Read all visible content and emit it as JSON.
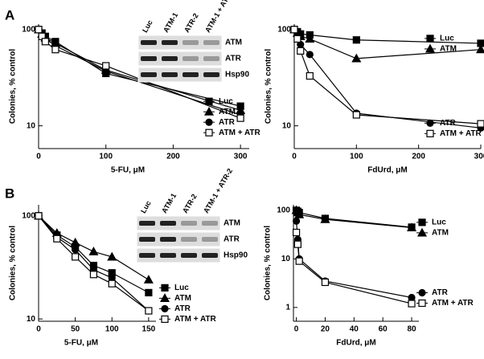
{
  "panel_labels": [
    "A",
    "B"
  ],
  "chart_data": [
    {
      "type": "line",
      "yscale": "log",
      "xlabel": "5-FU, μM",
      "ylabel": "Colonies, % control",
      "x": [
        0,
        5,
        10,
        25,
        100,
        300
      ],
      "xlim": [
        0,
        313
      ],
      "xticks": [
        0,
        100,
        200,
        300
      ],
      "ylim": [
        5.8,
        114
      ],
      "yticks": [
        10,
        100
      ],
      "series": [
        {
          "name": "Luc",
          "marker": "square",
          "color": "#000",
          "values": [
            100,
            92,
            85,
            75,
            35,
            16
          ]
        },
        {
          "name": "ATM",
          "marker": "triangle",
          "color": "#000",
          "values": [
            100,
            90,
            82,
            72,
            38,
            14.5
          ]
        },
        {
          "name": "ATR",
          "marker": "circle",
          "color": "#000",
          "values": [
            100,
            88,
            80,
            68,
            37,
            13
          ]
        },
        {
          "name": "ATM + ATR",
          "marker": "open-square",
          "color": "#000",
          "values": [
            100,
            85,
            75,
            62,
            42,
            12
          ]
        }
      ],
      "inset": {
        "lanes": [
          "Luc",
          "ATM-1",
          "ATR-2",
          "ATM-1 + ATR-2"
        ],
        "rows": [
          "ATM",
          "ATR",
          "Hsp90"
        ]
      }
    },
    {
      "type": "line",
      "yscale": "log",
      "xlabel": "FdUrd, μM",
      "ylabel": "Colonies, % control",
      "x": [
        0,
        5,
        10,
        25,
        100,
        300
      ],
      "xlim": [
        0,
        300
      ],
      "xticks": [
        0,
        100,
        200,
        300
      ],
      "ylim": [
        5.8,
        114
      ],
      "yticks": [
        10,
        100
      ],
      "series": [
        {
          "name": "Luc",
          "marker": "square",
          "color": "#000",
          "values": [
            100,
            95,
            90,
            88,
            78,
            72
          ]
        },
        {
          "name": "ATM",
          "marker": "triangle",
          "color": "#000",
          "values": [
            100,
            92,
            85,
            80,
            50,
            62
          ]
        },
        {
          "name": "ATR",
          "marker": "circle",
          "color": "#000",
          "values": [
            100,
            85,
            70,
            55,
            13.5,
            9.5
          ]
        },
        {
          "name": "ATM + ATR",
          "marker": "open-square",
          "color": "#000",
          "values": [
            100,
            80,
            60,
            33,
            13,
            10.5
          ]
        }
      ]
    },
    {
      "type": "line",
      "yscale": "log",
      "xlabel": "5-FU, μM",
      "ylabel": "Colonies, % control",
      "x": [
        0,
        25,
        50,
        75,
        100,
        150
      ],
      "xlim": [
        0,
        160
      ],
      "xticks": [
        0,
        50,
        100,
        150
      ],
      "ylim": [
        9.5,
        128
      ],
      "yticks": [
        10,
        100
      ],
      "series": [
        {
          "name": "Luc",
          "marker": "square",
          "color": "#000",
          "values": [
            100,
            65,
            50,
            33,
            28,
            18
          ]
        },
        {
          "name": "ATM",
          "marker": "triangle",
          "color": "#000",
          "values": [
            100,
            68,
            55,
            45,
            40,
            24
          ]
        },
        {
          "name": "ATR",
          "marker": "circle",
          "color": "#000",
          "values": [
            100,
            62,
            47,
            30,
            25,
            12
          ]
        },
        {
          "name": "ATM + ATR",
          "marker": "open-square",
          "color": "#000",
          "values": [
            100,
            60,
            40,
            27,
            22,
            12
          ]
        }
      ],
      "inset": {
        "lanes": [
          "Luc",
          "ATM-1",
          "ATR-2",
          "ATM-1 + ATR-2"
        ],
        "rows": [
          "ATM",
          "ATR",
          "Hsp90"
        ]
      }
    },
    {
      "type": "line",
      "yscale": "log",
      "xlabel": "FdUrd, μM",
      "ylabel": "Colonies, % control",
      "x": [
        0,
        1,
        2,
        20,
        80
      ],
      "xlim": [
        -2,
        85
      ],
      "xticks": [
        0,
        20,
        40,
        60,
        80
      ],
      "ylim": [
        0.52,
        130
      ],
      "yticks": [
        1,
        10,
        100
      ],
      "series": [
        {
          "name": "Luc",
          "marker": "square",
          "color": "#000",
          "values": [
            100,
            95,
            90,
            68,
            45
          ]
        },
        {
          "name": "ATM",
          "marker": "triangle",
          "color": "#000",
          "values": [
            100,
            90,
            82,
            65,
            44
          ]
        },
        {
          "name": "ATR",
          "marker": "circle",
          "color": "#000",
          "values": [
            60,
            25,
            10,
            3.5,
            1.6
          ]
        },
        {
          "name": "ATM + ATR",
          "marker": "open-square",
          "color": "#000",
          "values": [
            35,
            20,
            9,
            3.3,
            1.2
          ]
        }
      ]
    }
  ]
}
